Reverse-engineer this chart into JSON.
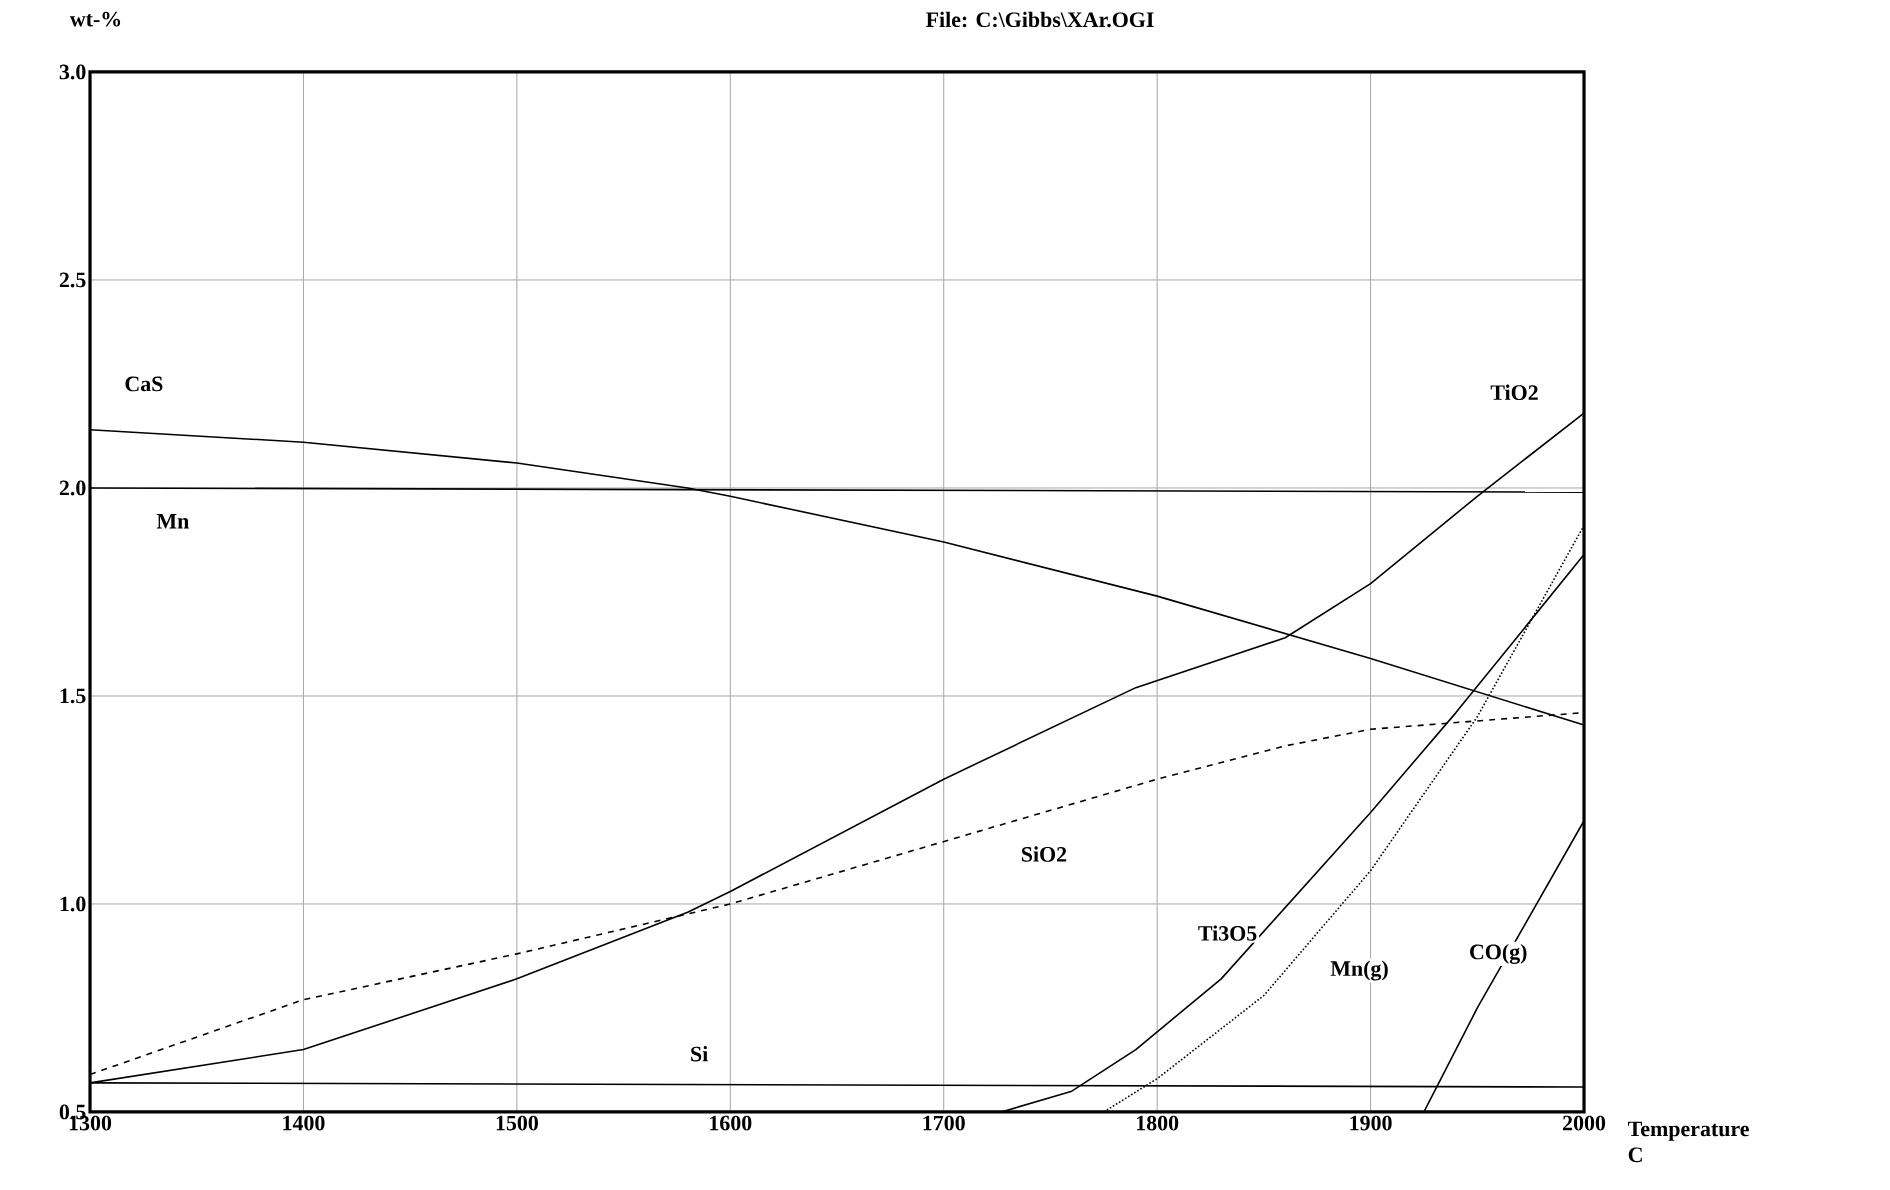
{
  "chart_data": {
    "type": "line",
    "title": "File: C:\\Gibbs\\XAr.OGI",
    "xlabel": "Temperature C",
    "ylabel": "wt-%",
    "xlim": [
      1300,
      2000
    ],
    "ylim": [
      0.5,
      3.0
    ],
    "xticks": [
      1300,
      1400,
      1500,
      1600,
      1700,
      1800,
      1900,
      2000
    ],
    "yticks": [
      0.5,
      {
        "value": 1.0,
        "label": "1.0"
      },
      1.5,
      {
        "value": 2.0,
        "label": "2.0"
      },
      2.5,
      {
        "value": 3.0,
        "label": "3.0"
      }
    ],
    "grid": true,
    "marker": "none",
    "series": [
      {
        "name": "CaS",
        "color": "#000000",
        "line_style": "solid",
        "x": [
          1300,
          1400,
          1500,
          1580,
          1600,
          1700,
          1800,
          1900,
          2000
        ],
        "values": [
          2.14,
          2.11,
          2.06,
          2.0,
          1.98,
          1.87,
          1.74,
          1.59,
          1.43
        ]
      },
      {
        "name": "Mn",
        "color": "#000000",
        "line_style": "solid",
        "x": [
          1300,
          2000
        ],
        "values": [
          2.0,
          1.99
        ]
      },
      {
        "name": "Si",
        "color": "#000000",
        "line_style": "solid",
        "x": [
          1300,
          2000
        ],
        "values": [
          0.57,
          0.56
        ]
      },
      {
        "name": "SiO2",
        "color": "#000000",
        "line_style": "dashed",
        "x": [
          1300,
          1400,
          1500,
          1600,
          1700,
          1800,
          1860,
          1900,
          2000
        ],
        "values": [
          0.59,
          0.77,
          0.88,
          1.0,
          1.15,
          1.3,
          1.38,
          1.42,
          1.46
        ]
      },
      {
        "name": "Ti3O5",
        "color": "#000000",
        "line_style": "solid",
        "x": [
          1727,
          1760,
          1790,
          1830,
          1900,
          1940,
          2000
        ],
        "values": [
          0.5,
          0.55,
          0.65,
          0.82,
          1.22,
          1.46,
          1.84
        ]
      },
      {
        "name": "Mn(g)",
        "color": "#000000",
        "line_style": "dotted",
        "x": [
          1775,
          1800,
          1850,
          1900,
          1950,
          2000
        ],
        "values": [
          0.5,
          0.58,
          0.78,
          1.08,
          1.45,
          1.91
        ]
      },
      {
        "name": "CO(g)",
        "color": "#000000",
        "line_style": "solid",
        "x": [
          1925,
          1950,
          2000
        ],
        "values": [
          0.5,
          0.75,
          1.2
        ]
      },
      {
        "name": "TiO2",
        "color": "#000000",
        "line_style": "solid",
        "x": [
          1300,
          1400,
          1500,
          1580,
          1600,
          1700,
          1790,
          1860,
          1900,
          1950,
          2000
        ],
        "values": [
          0.57,
          0.65,
          0.82,
          0.98,
          1.03,
          1.3,
          1.52,
          1.64,
          1.77,
          1.98,
          2.18
        ]
      }
    ]
  }
}
